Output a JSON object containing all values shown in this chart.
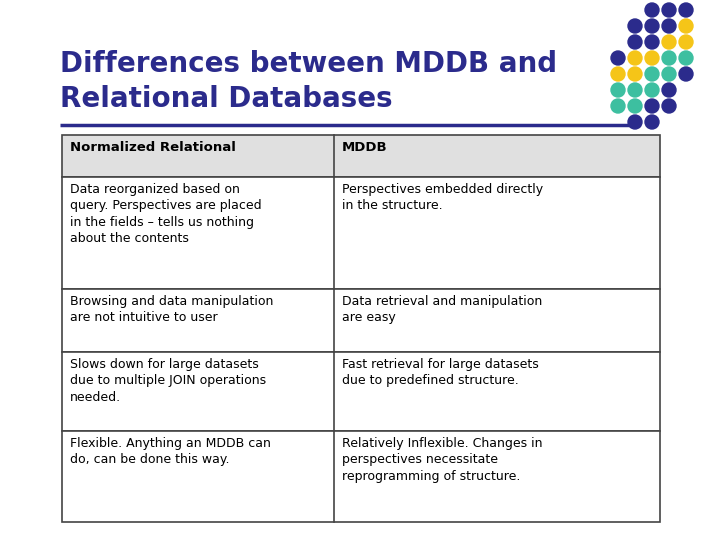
{
  "title_line1": "Differences between MDDB and",
  "title_line2": "Relational Databases",
  "title_color": "#2b2b8c",
  "title_fontsize": 20,
  "bg_color": "#ffffff",
  "underline_color": "#2b2b8c",
  "table_header": [
    "Normalized Relational",
    "MDDB"
  ],
  "table_rows": [
    [
      "Data reorganized based on\nquery. Perspectives are placed\nin the fields – tells us nothing\nabout the contents",
      "Perspectives embedded directly\nin the structure."
    ],
    [
      "Browsing and data manipulation\nare not intuitive to user",
      "Data retrieval and manipulation\nare easy"
    ],
    [
      "Slows down for large datasets\ndue to multiple JOIN operations\nneeded.",
      "Fast retrieval for large datasets\ndue to predefined structure."
    ],
    [
      "Flexible. Anything an MDDB can\ndo, can be done this way.",
      "Relatively Inflexible. Changes in\nperspectives necessitate\nreprogramming of structure."
    ]
  ],
  "dot_colors": [
    "#2b2b8c",
    "#f5c518",
    "#3dbfa0"
  ],
  "table_border_color": "#444444",
  "header_font_color": "#000000",
  "cell_font_color": "#000000",
  "header_bg": "#e0e0e0"
}
